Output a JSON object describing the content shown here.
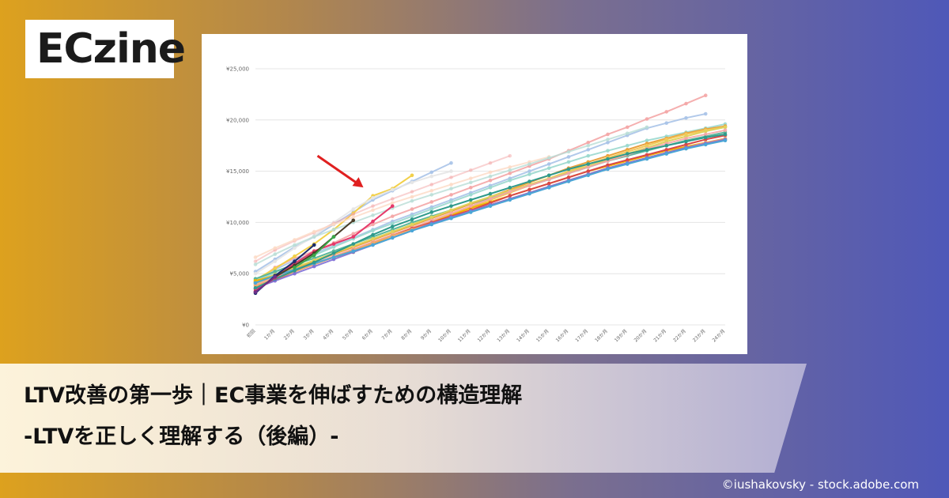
{
  "brand": {
    "logo": "ECzine",
    "dot_color": "#f2a51c"
  },
  "headline": {
    "line1": "LTV改善の第一歩｜EC事業を伸ばすための構造理解",
    "line2": "-LTVを正しく理解する（後編）-"
  },
  "credit": "©iushakovsky - stock.adobe.com",
  "chart_data": {
    "type": "line",
    "title": "",
    "xlabel": "",
    "ylabel": "",
    "ylim": [
      0,
      25000
    ],
    "y_ticks": [
      "¥0",
      "¥5,000",
      "¥10,000",
      "¥15,000",
      "¥20,000",
      "¥25,000"
    ],
    "y_tick_values": [
      0,
      5000,
      10000,
      15000,
      20000,
      25000
    ],
    "categories": [
      "初回",
      "1か月",
      "2か月",
      "3か月",
      "4か月",
      "5か月",
      "6か月",
      "7か月",
      "8か月",
      "9か月",
      "10か月",
      "11か月",
      "12か月",
      "13か月",
      "14か月",
      "15か月",
      "16か月",
      "17か月",
      "18か月",
      "19か月",
      "20か月",
      "21か月",
      "22か月",
      "23か月",
      "24か月"
    ],
    "grid": true,
    "legend": "none",
    "annotation": {
      "type": "arrow",
      "color": "#e02020",
      "points_to": "6か月"
    },
    "series": [
      {
        "color": "#f4a6a6",
        "opacity": 0.9,
        "values": [
          4200,
          5600,
          6500,
          7200,
          8000,
          8900,
          9800,
          10600,
          11300,
          12000,
          12700,
          13400,
          14100,
          14800,
          15500,
          16200,
          17000,
          17800,
          18600,
          19300,
          20100,
          20800,
          21600,
          22400,
          null
        ]
      },
      {
        "color": "#a9c3e8",
        "opacity": 0.9,
        "values": [
          4000,
          5400,
          6300,
          7000,
          7700,
          8500,
          9300,
          10100,
          10800,
          11500,
          12200,
          12900,
          13600,
          14300,
          15000,
          15700,
          16400,
          17100,
          17800,
          18500,
          19200,
          19700,
          20200,
          20600,
          null
        ]
      },
      {
        "color": "#a9c3e8",
        "opacity": 0.9,
        "values": [
          5200,
          6400,
          7600,
          8600,
          9800,
          11000,
          12200,
          13100,
          14000,
          14900,
          15800,
          null,
          null,
          null,
          null,
          null,
          null,
          null,
          null,
          null,
          null,
          null,
          null,
          null,
          null
        ]
      },
      {
        "color": "#f2d04a",
        "opacity": 1,
        "values": [
          4400,
          5500,
          6700,
          7900,
          9300,
          10900,
          12600,
          13300,
          14600,
          null,
          null,
          null,
          null,
          null,
          null,
          null,
          null,
          null,
          null,
          null,
          null,
          null,
          null,
          null,
          null
        ]
      },
      {
        "color": "#e5e5e5",
        "opacity": 0.9,
        "values": [
          5000,
          6200,
          7500,
          8700,
          10000,
          11300,
          12400,
          13200,
          13900,
          14500,
          15000,
          null,
          null,
          null,
          null,
          null,
          null,
          null,
          null,
          null,
          null,
          null,
          null,
          null,
          null
        ]
      },
      {
        "color": "#f4a6a6",
        "opacity": 0.5,
        "values": [
          6200,
          7300,
          8200,
          9000,
          9900,
          10800,
          11600,
          12300,
          13000,
          13700,
          14400,
          15100,
          15800,
          16500,
          null,
          null,
          null,
          null,
          null,
          null,
          null,
          null,
          null,
          null,
          null
        ]
      },
      {
        "color": "#fcd9c4",
        "opacity": 0.8,
        "values": [
          6600,
          7500,
          8300,
          9100,
          9800,
          10500,
          11200,
          11900,
          12500,
          13100,
          13700,
          14300,
          14900,
          15400,
          15900,
          16400,
          null,
          null,
          null,
          null,
          null,
          null,
          null,
          null,
          null
        ]
      },
      {
        "color": "#b9ddd6",
        "opacity": 0.8,
        "values": [
          5900,
          6900,
          7800,
          8600,
          9300,
          10000,
          10700,
          11400,
          12100,
          12700,
          13300,
          13900,
          14500,
          15100,
          15700,
          16300,
          16900,
          17500,
          18100,
          18700,
          19300,
          null,
          null,
          null,
          null
        ]
      },
      {
        "color": "#9ad8ce",
        "opacity": 0.9,
        "values": [
          4300,
          5100,
          6000,
          6800,
          7600,
          8400,
          9200,
          9900,
          10600,
          11300,
          12000,
          12700,
          13400,
          14100,
          14700,
          15300,
          15900,
          16500,
          17000,
          17500,
          18000,
          18400,
          18800,
          19200,
          19600
        ]
      },
      {
        "color": "#5ab79c",
        "opacity": 1,
        "values": [
          4500,
          5200,
          5900,
          6500,
          7200,
          7900,
          8600,
          9300,
          10000,
          10600,
          11200,
          11800,
          12400,
          13000,
          13600,
          14200,
          14800,
          15400,
          16000,
          16500,
          17000,
          17500,
          18000,
          18400,
          18800
        ]
      },
      {
        "color": "#e9a13c",
        "opacity": 1,
        "values": [
          4100,
          4800,
          5500,
          6200,
          6900,
          7600,
          8300,
          9000,
          9700,
          10400,
          11100,
          11800,
          12500,
          13200,
          13900,
          14600,
          15300,
          15900,
          16500,
          17100,
          17700,
          18200,
          18700,
          19100,
          19400
        ]
      },
      {
        "color": "#f3c85a",
        "opacity": 1,
        "values": [
          4000,
          4700,
          5400,
          6000,
          6600,
          7300,
          8000,
          8700,
          9400,
          10100,
          10800,
          11500,
          12200,
          12900,
          13600,
          14300,
          15000,
          15700,
          16300,
          16900,
          17500,
          18100,
          18600,
          19000,
          19300
        ]
      },
      {
        "color": "#e0d25c",
        "opacity": 1,
        "values": [
          4200,
          4900,
          5600,
          6300,
          7000,
          7700,
          8400,
          9100,
          9800,
          10500,
          11200,
          11900,
          12500,
          13100,
          13700,
          14300,
          14900,
          15500,
          16100,
          16700,
          17300,
          17900,
          18400,
          18900,
          19300
        ]
      },
      {
        "color": "#f0b400",
        "opacity": 1,
        "values": [
          4300,
          4800,
          5300,
          6000,
          6600,
          7100,
          7900,
          8700,
          9500,
          10000,
          10700,
          11400,
          12000,
          12600,
          13200,
          13800,
          14400,
          15000,
          15500,
          16000,
          16500,
          17000,
          17400,
          17800,
          18100
        ]
      },
      {
        "color": "#f4a6a6",
        "opacity": 0.9,
        "values": [
          3900,
          4600,
          5300,
          6000,
          6700,
          7400,
          8100,
          8800,
          9500,
          10200,
          10900,
          11600,
          12300,
          13000,
          13600,
          14200,
          14800,
          15400,
          16000,
          16600,
          17200,
          17700,
          18200,
          18600,
          19000
        ]
      },
      {
        "color": "#d94848",
        "opacity": 1,
        "values": [
          3500,
          4400,
          5200,
          5900,
          6600,
          7300,
          8000,
          8700,
          9400,
          10000,
          10600,
          11200,
          11900,
          12600,
          13200,
          13800,
          14400,
          15000,
          15600,
          16100,
          16600,
          17100,
          17600,
          18100,
          18500
        ]
      },
      {
        "color": "#f2a96a",
        "opacity": 1,
        "values": [
          3800,
          4500,
          5200,
          5900,
          6600,
          7300,
          8000,
          8700,
          9300,
          9900,
          10500,
          11100,
          11700,
          12300,
          12900,
          13500,
          14100,
          14700,
          15300,
          15800,
          16300,
          16800,
          17300,
          17800,
          18200
        ]
      },
      {
        "color": "#7e6fd6",
        "opacity": 0.9,
        "values": [
          3600,
          4300,
          5000,
          5700,
          6400,
          7100,
          7800,
          8500,
          9200,
          9900,
          10500,
          11100,
          11700,
          12300,
          12900,
          13500,
          14100,
          14700,
          15300,
          15800,
          16300,
          16800,
          17300,
          17700,
          18100
        ]
      },
      {
        "color": "#4aa6d6",
        "opacity": 1,
        "values": [
          4100,
          4800,
          5400,
          6000,
          6600,
          7200,
          7800,
          8500,
          9200,
          9800,
          10400,
          11000,
          11600,
          12200,
          12800,
          13400,
          14000,
          14600,
          15200,
          15700,
          16200,
          16700,
          17200,
          17600,
          18000
        ]
      },
      {
        "color": "#2f9a8c",
        "opacity": 1,
        "values": [
          3600,
          4500,
          5300,
          6100,
          7000,
          7900,
          8800,
          9600,
          10300,
          11000,
          11600,
          12200,
          12800,
          13400,
          14000,
          14600,
          15200,
          15700,
          16200,
          16700,
          17100,
          17500,
          17900,
          18300,
          18600
        ]
      },
      {
        "color": "#e6396a",
        "opacity": 1,
        "values": [
          3300,
          4600,
          6000,
          7200,
          7900,
          8600,
          10100,
          11600,
          null,
          null,
          null,
          null,
          null,
          null,
          null,
          null,
          null,
          null,
          null,
          null,
          null,
          null,
          null,
          null,
          null
        ]
      },
      {
        "color": "#4a3d28",
        "opacity": 1,
        "values": [
          3200,
          4700,
          5800,
          7000,
          8600,
          10200,
          null,
          null,
          null,
          null,
          null,
          null,
          null,
          null,
          null,
          null,
          null,
          null,
          null,
          null,
          null,
          null,
          null,
          null,
          null
        ]
      },
      {
        "color": "#1c2d6b",
        "opacity": 1,
        "values": [
          3100,
          4800,
          6200,
          7800,
          null,
          null,
          null,
          null,
          null,
          null,
          null,
          null,
          null,
          null,
          null,
          null,
          null,
          null,
          null,
          null,
          null,
          null,
          null,
          null,
          null
        ]
      },
      {
        "color": "#6e2f8a",
        "opacity": 1,
        "values": [
          3200,
          4700,
          null,
          null,
          null,
          null,
          null,
          null,
          null,
          null,
          null,
          null,
          null,
          null,
          null,
          null,
          null,
          null,
          null,
          null,
          null,
          null,
          null,
          null,
          null
        ]
      },
      {
        "color": "#3aa84a",
        "opacity": 1,
        "values": [
          null,
          null,
          5600,
          6800,
          8600,
          null,
          null,
          null,
          null,
          null,
          null,
          null,
          null,
          null,
          null,
          null,
          null,
          null,
          null,
          null,
          null,
          null,
          null,
          null,
          null
        ]
      }
    ]
  }
}
